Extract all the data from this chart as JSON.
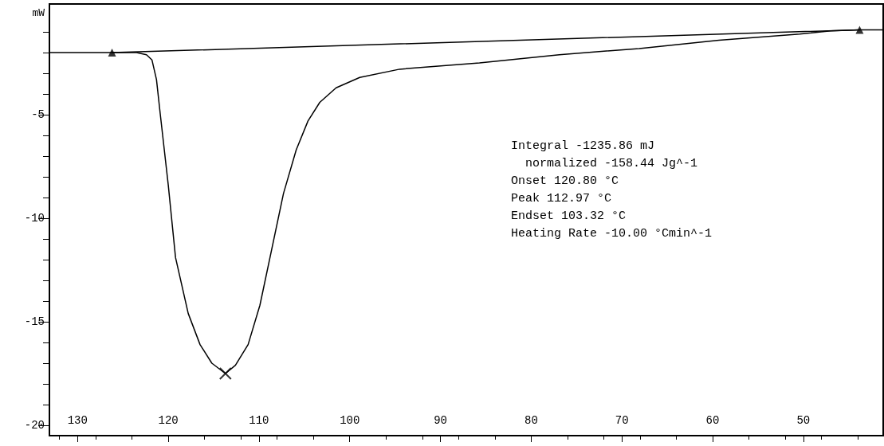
{
  "chart_data": {
    "type": "line",
    "ylabel": "mW",
    "xlim": [
      133.1,
      41.2
    ],
    "ylim": [
      -20.5,
      0.35
    ],
    "xticks": [
      130,
      120,
      110,
      100,
      90,
      80,
      70,
      60,
      50
    ],
    "yticks": [
      -20,
      -15,
      -10,
      -5
    ],
    "grid": false,
    "series": [
      {
        "color": "#000000",
        "marker": "none",
        "x": [
          133.1,
          126.2,
          123.5,
          122.4,
          121.8,
          121.3,
          120.9,
          120.0,
          119.2,
          117.8,
          116.5,
          115.2,
          113.7,
          112.6,
          111.2,
          109.9,
          108.6,
          107.3,
          105.9,
          104.6,
          103.3,
          101.5,
          98.9,
          94.5,
          85.7,
          76.9,
          68.1,
          59.3,
          50.4,
          47.0,
          43.8,
          41.2
        ],
        "values": [
          -2.0,
          -2.0,
          -2.0,
          -2.1,
          -2.35,
          -3.3,
          -4.9,
          -8.4,
          -11.9,
          -14.6,
          -16.1,
          -17.0,
          -17.5,
          -17.1,
          -16.1,
          -14.2,
          -11.5,
          -8.8,
          -6.7,
          -5.3,
          -4.4,
          -3.7,
          -3.2,
          -2.8,
          -2.5,
          -2.1,
          -1.8,
          -1.4,
          -1.1,
          -0.95,
          -0.9,
          -0.9
        ]
      },
      {
        "color": "#000000",
        "marker": "none",
        "x": [
          126.2,
          43.8
        ],
        "values": [
          -2.0,
          -0.9
        ]
      },
      {
        "type": "scatter",
        "color": "#000000",
        "marker": "triangle",
        "x": [
          126.2,
          43.8
        ],
        "values": [
          -2.0,
          -0.9
        ]
      },
      {
        "type": "scatter",
        "color": "#000000",
        "marker": "cross",
        "x": [
          113.7
        ],
        "values": [
          -17.5
        ]
      }
    ],
    "annotations": [
      "Integral -1235.86 mJ",
      "  normalized -158.44 Jg^-1",
      "Onset 120.80 °C",
      "Peak 112.97 °C",
      "Endset 103.32 °C",
      "Heating Rate -10.00 °Cmin^-1"
    ]
  }
}
